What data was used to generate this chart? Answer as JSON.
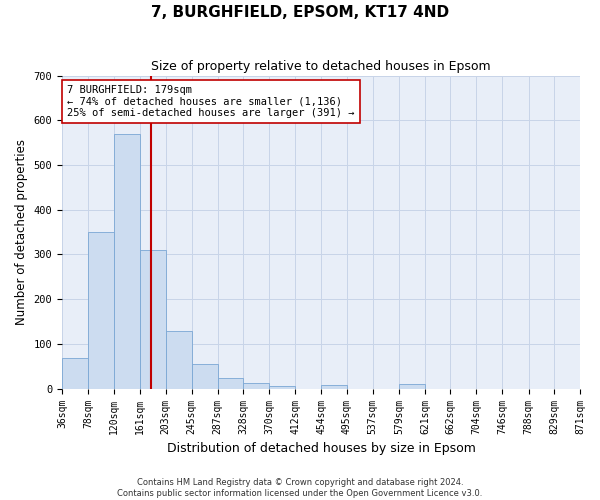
{
  "title": "7, BURGHFIELD, EPSOM, KT17 4ND",
  "subtitle": "Size of property relative to detached houses in Epsom",
  "xlabel": "Distribution of detached houses by size in Epsom",
  "ylabel": "Number of detached properties",
  "bin_edges": [
    36,
    78,
    120,
    161,
    203,
    245,
    287,
    328,
    370,
    412,
    454,
    495,
    537,
    579,
    621,
    662,
    704,
    746,
    788,
    829,
    871
  ],
  "bar_heights": [
    68,
    350,
    570,
    310,
    130,
    55,
    25,
    13,
    7,
    0,
    8,
    0,
    0,
    10,
    0,
    0,
    0,
    0,
    0,
    0
  ],
  "bar_color": "#ccdcf0",
  "bar_edge_color": "#7aa6d4",
  "ylim": [
    0,
    700
  ],
  "yticks": [
    0,
    100,
    200,
    300,
    400,
    500,
    600,
    700
  ],
  "vline_x": 179,
  "vline_color": "#c00000",
  "annotation_text": "7 BURGHFIELD: 179sqm\n← 74% of detached houses are smaller (1,136)\n25% of semi-detached houses are larger (391) →",
  "annotation_box_color": "#ffffff",
  "annotation_box_edge": "#c00000",
  "grid_color": "#c8d4e8",
  "background_color": "#e8eef8",
  "footer_line1": "Contains HM Land Registry data © Crown copyright and database right 2024.",
  "footer_line2": "Contains public sector information licensed under the Open Government Licence v3.0.",
  "title_fontsize": 11,
  "subtitle_fontsize": 9,
  "axis_label_fontsize": 8.5,
  "tick_fontsize": 7,
  "annotation_fontsize": 7.5,
  "footer_fontsize": 6
}
